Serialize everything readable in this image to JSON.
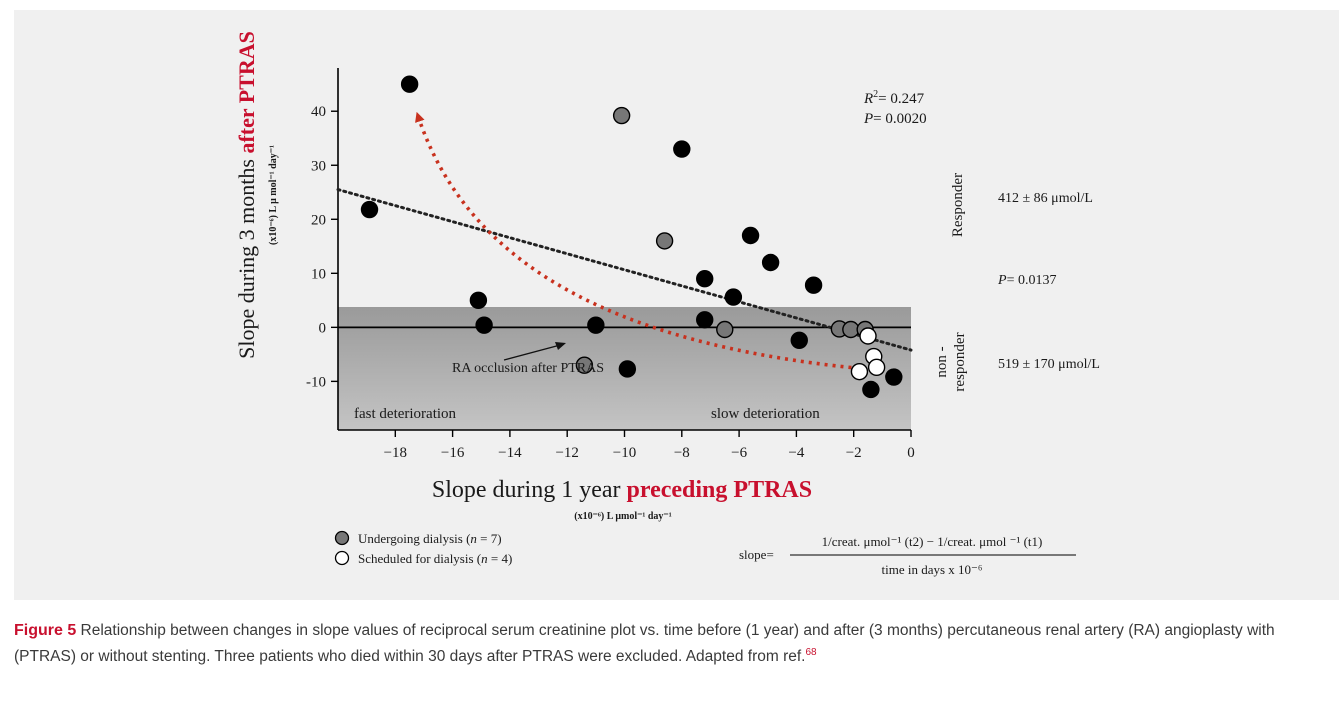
{
  "chart_data": {
    "type": "scatter",
    "y_title": {
      "main": "Slope during 3 months ",
      "highlight": "after PTRAS",
      "unit": "(x10⁻⁶) L μ mol⁻¹ day⁻¹"
    },
    "x_title": {
      "main": "Slope during 1 year ",
      "highlight": "preceding PTRAS",
      "unit": "(x10⁻⁶) L μmol⁻¹ day⁻¹"
    },
    "xlim": [
      -20,
      0
    ],
    "ylim": [
      -19,
      48
    ],
    "x_ticks": [
      -18,
      -16,
      -14,
      -12,
      -10,
      -8,
      -6,
      -4,
      -2,
      0
    ],
    "y_ticks": [
      -10,
      0,
      10,
      20,
      30,
      40
    ],
    "x_tick_labels": [
      "−18",
      "−16",
      "−14",
      "−12",
      "−10",
      "−8",
      "−6",
      "−4",
      "−2",
      "0"
    ],
    "y_tick_labels": [
      "-10",
      "0",
      "10",
      "20",
      "30",
      "40"
    ],
    "grid": false,
    "series": [
      {
        "name": "",
        "style": "black-filled",
        "color": "#000000",
        "points": [
          [
            -17.5,
            45
          ],
          [
            -18.9,
            21.8
          ],
          [
            -15.1,
            5
          ],
          [
            -14.9,
            0.4
          ],
          [
            -11,
            0.4
          ],
          [
            -9.9,
            -7.7
          ],
          [
            -8,
            33
          ],
          [
            -7.2,
            9
          ],
          [
            -7.2,
            1.4
          ],
          [
            -6.2,
            5.6
          ],
          [
            -5.6,
            17
          ],
          [
            -4.9,
            12
          ],
          [
            -3.4,
            7.8
          ],
          [
            -3.9,
            -2.4
          ],
          [
            -1.4,
            -11.5
          ],
          [
            -0.6,
            -9.2
          ]
        ]
      },
      {
        "name": "Undergoing dialysis (n = 7)",
        "style": "gray-filled",
        "color": "#777777",
        "points": [
          [
            -10.1,
            39.2
          ],
          [
            -8.6,
            16
          ],
          [
            -6.5,
            -0.4
          ],
          [
            -11.4,
            -7
          ],
          [
            -2.5,
            -0.3
          ],
          [
            -2.1,
            -0.4
          ],
          [
            -1.6,
            -0.4
          ]
        ]
      },
      {
        "name": "Scheduled for dialysis (n = 4)",
        "style": "open",
        "color": "#000000",
        "points": [
          [
            -1.5,
            -1.6
          ],
          [
            -1.3,
            -5.4
          ],
          [
            -1.8,
            -8.2
          ],
          [
            -1.2,
            -7.4
          ]
        ]
      }
    ],
    "regression": {
      "from": [
        -20,
        25.5
      ],
      "to": [
        0,
        -4.2
      ],
      "color": "#222222"
    },
    "arrow": {
      "color": "#c8311e",
      "path": [
        [
          -1.8,
          -7.6
        ],
        [
          -10.5,
          -3
        ],
        [
          -15.5,
          12
        ],
        [
          -17.2,
          39
        ]
      ]
    },
    "stats": {
      "r2_label": "R",
      "r2_sup": "2",
      "r2_value": "= 0.247",
      "p_label": "P",
      "p_value": "= 0.0020"
    },
    "regions": {
      "responder_label": "Responder",
      "responder_value": "412 ± 86 μmol/L",
      "p_between_label": "P",
      "p_between_value": "= 0.0137",
      "nonresponder_line1": "non -",
      "nonresponder_line2": "responder",
      "nonresponder_value": "519 ± 170 μmol/L",
      "fast": "fast deterioration",
      "slow": "slow deterioration",
      "occlusion_note": "RA occlusion after PTRAS"
    },
    "legend": [
      {
        "label": "Undergoing dialysis (",
        "n": "n",
        "rest": " = 7)",
        "style": "gray-filled"
      },
      {
        "label": "Scheduled for dialysis (",
        "n": "n",
        "rest": " = 4)",
        "style": "open"
      }
    ],
    "formula": {
      "lhs": "slope=",
      "numerator": "1/creat. μmol⁻¹ (t2) − 1/creat. μmol ⁻¹ (t1)",
      "denominator": "time in days x 10⁻⁶"
    }
  },
  "caption": {
    "label": "Figure 5",
    "text": " Relationship between changes in slope values of reciprocal serum creatinine plot vs. time before (1 year) and after (3 months) percutaneous renal artery (RA) angioplasty with (PTRAS) or without stenting. Three patients who died within 30 days after PTRAS were excluded. Adapted from ref.",
    "ref": "68"
  }
}
